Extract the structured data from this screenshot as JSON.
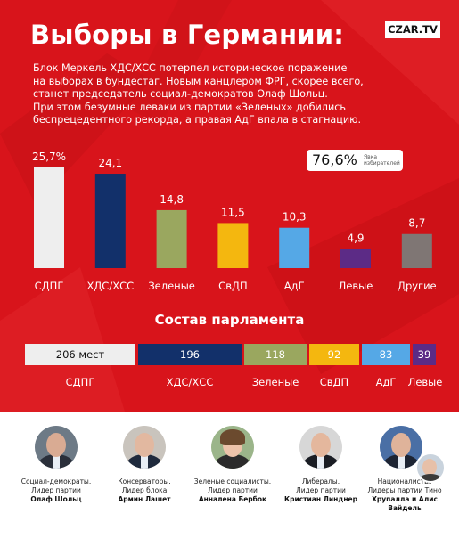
{
  "title": "Выборы в Германии:",
  "logo": "CZAR.TV",
  "intro": [
    "Блок Меркель ХДС/ХСС потерпел историческое поражение",
    "на выборах в бундестаг. Новым канцлером ФРГ, скорее всего,",
    "станет председатель социал-демократов Олаф Шольц.",
    "При этом безумные леваки из партии «Зеленых» добились",
    "беспрецедентного рекорда, а правая АдГ впала в стагнацию."
  ],
  "turnout": {
    "value": "76,6%",
    "label": "Явка избирателей"
  },
  "colors": {
    "background": "#d8141b",
    "spd": "#eeeeee",
    "cdu": "#12306a",
    "greens": "#9aa75f",
    "fdp": "#f4b70f",
    "afd": "#55a8e6",
    "left": "#5c2b86",
    "others": "#7f7674"
  },
  "chart_data": {
    "type": "bar",
    "categories": [
      "СДПГ",
      "ХДС/ХСС",
      "Зеленые",
      "СвДП",
      "АдГ",
      "Левые",
      "Другие"
    ],
    "values": [
      25.7,
      24.1,
      14.8,
      11.5,
      10.3,
      4.9,
      8.7
    ],
    "value_labels": [
      "25,7%",
      "24,1",
      "14,8",
      "11,5",
      "10,3",
      "4,9",
      "8,7"
    ],
    "ylim": [
      0,
      25.7
    ],
    "grid": false
  },
  "parliament": {
    "title": "Состав парламента",
    "segments": [
      {
        "party": "СДПГ",
        "seats": 206,
        "label": "206 мест"
      },
      {
        "party": "ХДС/ХСС",
        "seats": 196,
        "label": "196"
      },
      {
        "party": "Зеленые",
        "seats": 118,
        "label": "118"
      },
      {
        "party": "СвДП",
        "seats": 92,
        "label": "92"
      },
      {
        "party": "АдГ",
        "seats": 83,
        "label": "83"
      },
      {
        "party": "Левые",
        "seats": 39,
        "label": "39"
      }
    ]
  },
  "leaders": [
    {
      "caption": [
        "Социал-демократы.",
        "Лидер партии"
      ],
      "name": "Олаф Шольц"
    },
    {
      "caption": [
        "Консерваторы.",
        "Лидер блока"
      ],
      "name": "Армин Лашет"
    },
    {
      "caption": [
        "Зеленые социалисты.",
        "Лидер партии"
      ],
      "name": "Анналена Бербок"
    },
    {
      "caption": [
        "Либералы.",
        "Лидер партии"
      ],
      "name": "Кристиан Линднер"
    },
    {
      "caption": [
        "Националисты.",
        "Лидеры партии Тино"
      ],
      "name": "Хрупалла и Алис Вайдель"
    }
  ]
}
